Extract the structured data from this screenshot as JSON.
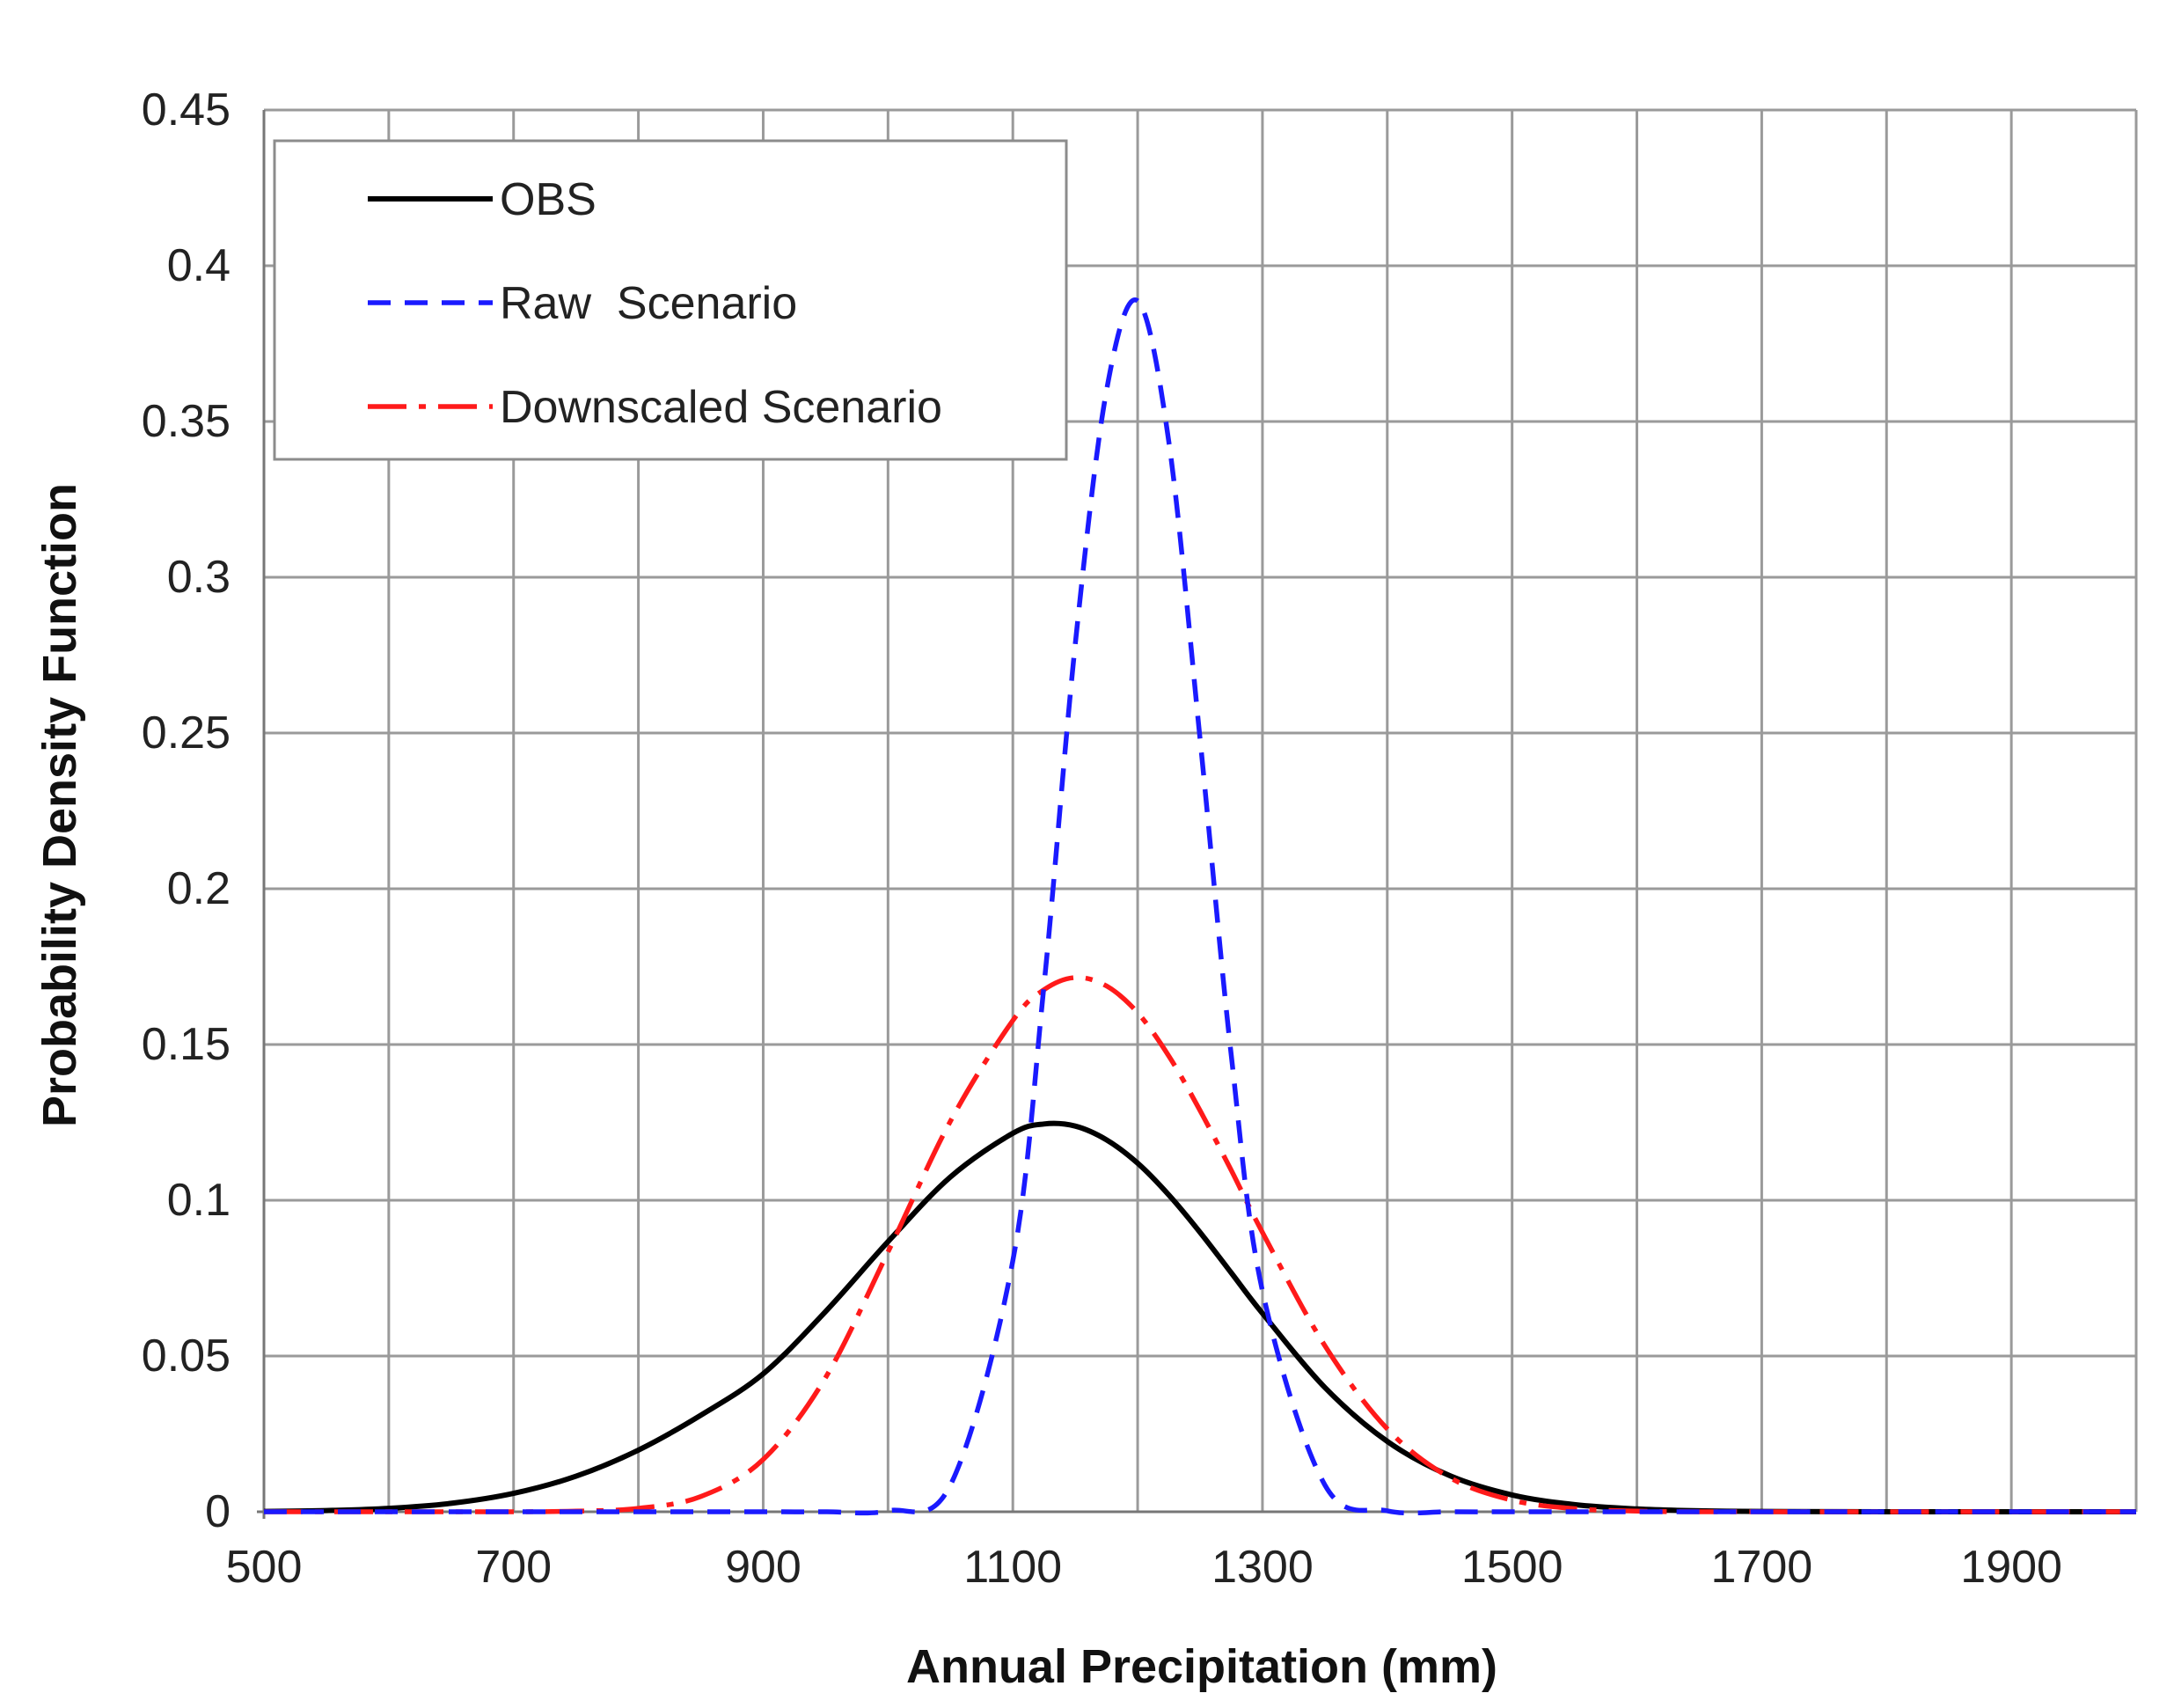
{
  "chart_data": {
    "type": "line",
    "title": "",
    "xlabel": "Annual Precipitation (mm)",
    "ylabel": "Probability Density Function",
    "xlim": [
      500,
      2000
    ],
    "ylim": [
      0,
      0.45
    ],
    "xticks": [
      500,
      700,
      900,
      1100,
      1300,
      1500,
      1700,
      1900
    ],
    "xtick_labels": [
      "500",
      "700",
      "900",
      "1100",
      "1300",
      "1500",
      "1700",
      "1900"
    ],
    "yticks": [
      0,
      0.05,
      0.1,
      0.15,
      0.2,
      0.25,
      0.3,
      0.35,
      0.4,
      0.45
    ],
    "ytick_labels": [
      "0",
      "0.05",
      "0.1",
      "0.15",
      "0.2",
      "0.25",
      "0.3",
      "0.35",
      "0.4",
      "0.45"
    ],
    "grid": true,
    "legend_position": "top-left",
    "x": [
      500,
      550,
      600,
      650,
      700,
      750,
      800,
      850,
      900,
      950,
      1000,
      1050,
      1100,
      1125,
      1150,
      1175,
      1200,
      1225,
      1250,
      1275,
      1300,
      1350,
      1400,
      1450,
      1500,
      1550,
      1600,
      1650,
      1700,
      1800,
      1900,
      2000
    ],
    "series": [
      {
        "name": "OBS",
        "color": "#000000",
        "style": "solid",
        "values": [
          0.0001,
          0.0004,
          0.0011,
          0.0027,
          0.0059,
          0.0114,
          0.0198,
          0.031,
          0.0443,
          0.0643,
          0.0867,
          0.1075,
          0.1215,
          0.1245,
          0.1238,
          0.1194,
          0.1119,
          0.1017,
          0.0897,
          0.0767,
          0.0637,
          0.0399,
          0.0226,
          0.0116,
          0.0054,
          0.0023,
          0.0009,
          0.0003,
          0.0001,
          0.0,
          0.0,
          0.0
        ]
      },
      {
        "name": "Raw  Scenario",
        "color": "#1a1aff",
        "style": "dashed",
        "values": [
          0.0,
          0.0,
          0.0,
          0.0,
          0.0,
          0.0,
          0.0,
          0.0,
          0.0,
          0.0,
          0.0003,
          0.0086,
          0.0806,
          0.1692,
          0.2784,
          0.3598,
          0.3887,
          0.3435,
          0.2481,
          0.1465,
          0.0709,
          0.0086,
          0.0003,
          0.0,
          0.0,
          0.0,
          0.0,
          0.0,
          0.0,
          0.0,
          0.0,
          0.0
        ]
      },
      {
        "name": "Downscaled Scenario",
        "color": "#ff1a1a",
        "style": "dashdot",
        "values": [
          0.0,
          0.0,
          0.0,
          0.0,
          0.0,
          0.0002,
          0.0011,
          0.0049,
          0.0168,
          0.0431,
          0.0834,
          0.1254,
          0.1577,
          0.1676,
          0.1715,
          0.1688,
          0.1602,
          0.1463,
          0.1288,
          0.1096,
          0.0897,
          0.0533,
          0.0266,
          0.011,
          0.0037,
          0.001,
          0.0002,
          0.0,
          0.0,
          0.0,
          0.0,
          0.0
        ]
      }
    ]
  }
}
